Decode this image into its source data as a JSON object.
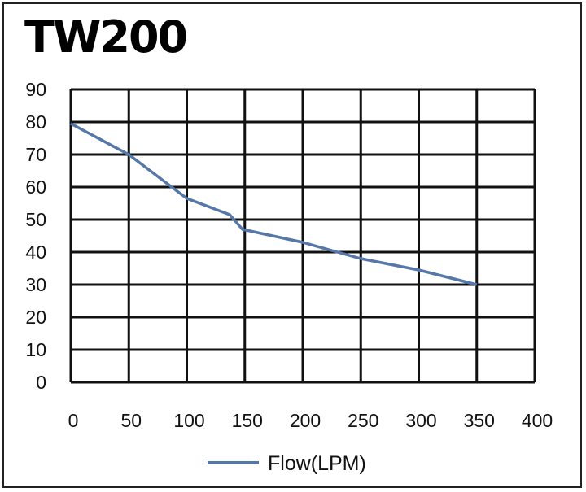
{
  "chart_data": {
    "type": "line",
    "title": "TW200",
    "xlabel": "",
    "ylabel": "",
    "xlim": [
      0,
      400
    ],
    "ylim": [
      0,
      90
    ],
    "xticks": [
      0,
      50,
      100,
      150,
      200,
      250,
      300,
      350,
      400
    ],
    "yticks": [
      0,
      10,
      20,
      30,
      40,
      50,
      60,
      70,
      80,
      90
    ],
    "grid": true,
    "legend_position": "bottom",
    "series": [
      {
        "name": "Flow(LPM)",
        "color": "#5578a8",
        "x": [
          0,
          50,
          100,
          137,
          148,
          200,
          250,
          300,
          350
        ],
        "y": [
          79.5,
          70,
          56.5,
          51.5,
          47,
          43,
          38,
          34.5,
          30
        ]
      }
    ]
  }
}
